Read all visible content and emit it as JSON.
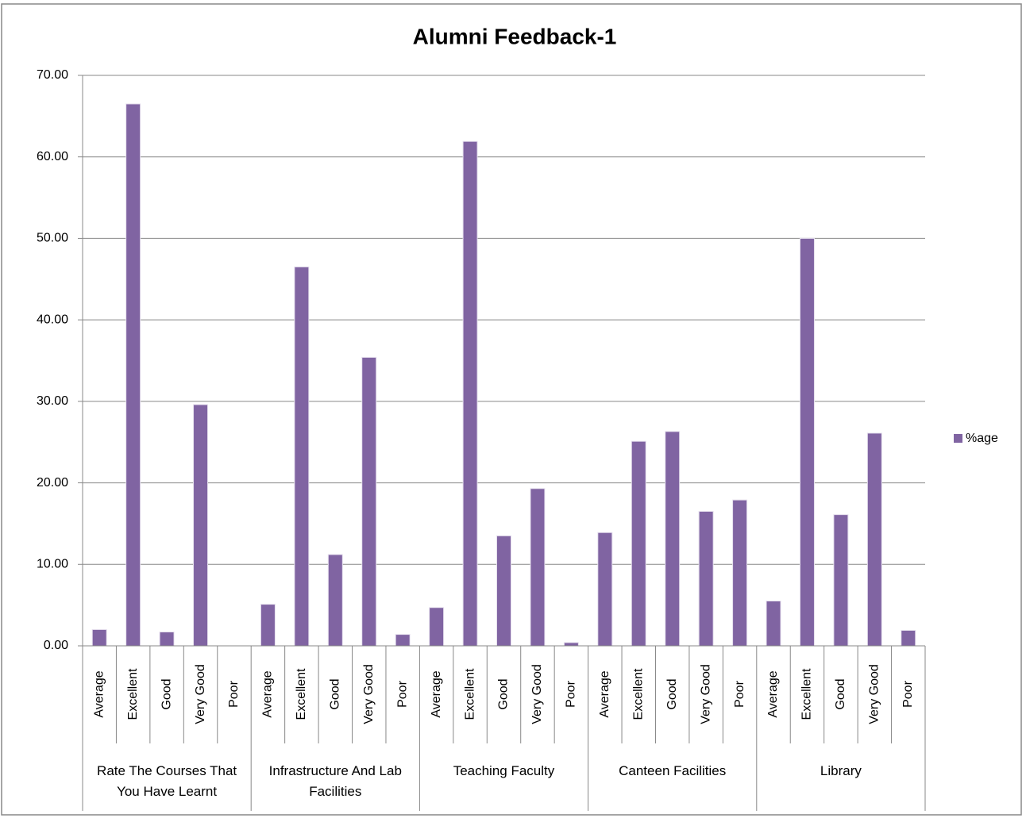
{
  "chart_data": {
    "type": "bar",
    "title": "Alumni  Feedback-1",
    "groups": [
      {
        "name": "Rate The Courses That You Have Learnt",
        "categories": [
          "Average",
          "Excellent",
          "Good",
          "Very Good",
          "Poor"
        ]
      },
      {
        "name": "Infrastructure And Lab Facilities",
        "categories": [
          "Average",
          "Excellent",
          "Good",
          "Very Good",
          "Poor"
        ]
      },
      {
        "name": "Teaching Faculty",
        "categories": [
          "Average",
          "Excellent",
          "Good",
          "Very Good",
          "Poor"
        ]
      },
      {
        "name": "Canteen Facilities",
        "categories": [
          "Average",
          "Excellent",
          "Good",
          "Very Good",
          "Poor"
        ]
      },
      {
        "name": "Library",
        "categories": [
          "Average",
          "Excellent",
          "Good",
          "Very Good",
          "Poor"
        ]
      }
    ],
    "series": [
      {
        "name": "%age",
        "color": "#8064a2",
        "values": [
          2.0,
          66.5,
          1.7,
          29.6,
          0,
          5.1,
          46.5,
          11.2,
          35.4,
          1.4,
          4.7,
          61.9,
          13.5,
          19.3,
          0.4,
          13.9,
          25.1,
          26.3,
          16.5,
          17.9,
          5.5,
          50.0,
          16.1,
          26.1,
          1.9
        ]
      }
    ],
    "ylim": [
      0,
      70
    ],
    "yticks": [
      {
        "value": 0,
        "label": "0.00"
      },
      {
        "value": 10,
        "label": "10.00"
      },
      {
        "value": 20,
        "label": "20.00"
      },
      {
        "value": 30,
        "label": "30.00"
      },
      {
        "value": 40,
        "label": "40.00"
      },
      {
        "value": 50,
        "label": "50.00"
      },
      {
        "value": 60,
        "label": "60.00"
      },
      {
        "value": 70,
        "label": "70.00"
      }
    ],
    "grid": true,
    "legend": "right"
  }
}
